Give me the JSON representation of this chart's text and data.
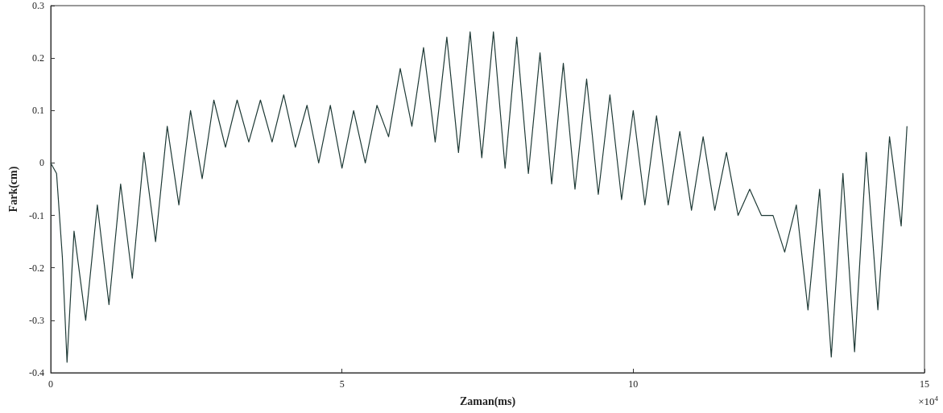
{
  "chart_data": {
    "type": "line",
    "xlabel": "Zaman(ms)",
    "ylabel": "Fark(cm)",
    "annotations": [
      "×10$^{4}$"
    ],
    "xlim": [
      0,
      15
    ],
    "xticks": [
      0,
      5,
      10,
      15
    ],
    "ylim": [
      -0.4,
      0.3
    ],
    "yticks": [
      -0.4,
      -0.3,
      -0.2,
      -0.1,
      0,
      0.1,
      0.2,
      0.3
    ],
    "grid": false,
    "series": [
      {
        "color": "#1f3a36",
        "x": [
          0,
          0.1,
          0.2,
          0.28,
          0.4,
          0.6,
          0.8,
          1.0,
          1.2,
          1.4,
          1.6,
          1.8,
          2.0,
          2.2,
          2.4,
          2.6,
          2.8,
          3.0,
          3.2,
          3.4,
          3.6,
          3.8,
          4.0,
          4.2,
          4.4,
          4.6,
          4.8,
          5.0,
          5.2,
          5.4,
          5.6,
          5.8,
          6.0,
          6.2,
          6.4,
          6.6,
          6.8,
          7.0,
          7.2,
          7.4,
          7.6,
          7.8,
          8.0,
          8.2,
          8.4,
          8.6,
          8.8,
          9.0,
          9.2,
          9.4,
          9.6,
          9.8,
          10.0,
          10.2,
          10.4,
          10.6,
          10.8,
          11.0,
          11.2,
          11.4,
          11.6,
          11.8,
          12.0,
          12.2,
          12.4,
          12.6,
          12.8,
          13.0,
          13.2,
          13.4,
          13.6,
          13.8,
          14.0,
          14.2,
          14.4,
          14.6,
          14.7
        ],
        "values": [
          0,
          -0.02,
          -0.18,
          -0.38,
          -0.13,
          -0.3,
          -0.08,
          -0.27,
          -0.04,
          -0.22,
          0.02,
          -0.15,
          0.07,
          -0.08,
          0.1,
          -0.03,
          0.12,
          0.03,
          0.12,
          0.04,
          0.12,
          0.04,
          0.13,
          0.03,
          0.11,
          0.0,
          0.11,
          -0.01,
          0.1,
          0.0,
          0.11,
          0.05,
          0.18,
          0.07,
          0.22,
          0.04,
          0.24,
          0.02,
          0.25,
          0.01,
          0.25,
          -0.01,
          0.24,
          -0.02,
          0.21,
          -0.04,
          0.19,
          -0.05,
          0.16,
          -0.06,
          0.13,
          -0.07,
          0.1,
          -0.08,
          0.09,
          -0.08,
          0.06,
          -0.09,
          0.05,
          -0.09,
          0.02,
          -0.1,
          -0.05,
          -0.1,
          -0.1,
          -0.17,
          -0.08,
          -0.28,
          -0.05,
          -0.37,
          -0.02,
          -0.36,
          0.02,
          -0.28,
          0.05,
          -0.12,
          0.07
        ]
      }
    ]
  }
}
